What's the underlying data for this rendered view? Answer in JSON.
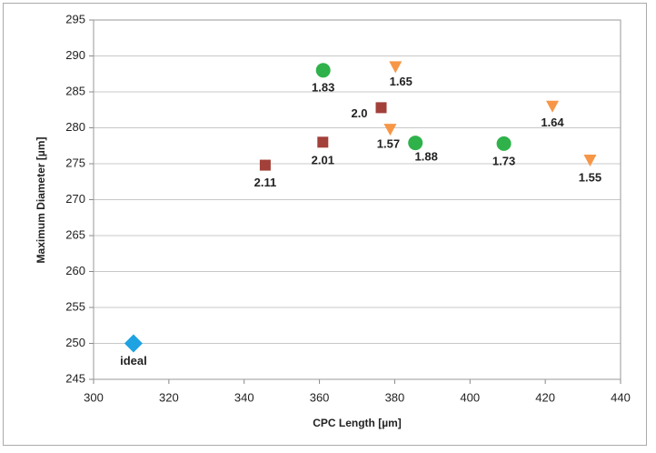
{
  "chart_data": {
    "type": "scatter",
    "x_label": "CPC Length [µm]",
    "y_label": "Maximum Diameter [µm]",
    "xlim": [
      300,
      440
    ],
    "xticks": [
      300,
      320,
      340,
      360,
      380,
      400,
      420,
      440
    ],
    "ylim": [
      245,
      295
    ],
    "yticks": [
      245,
      250,
      255,
      260,
      265,
      270,
      275,
      280,
      285,
      290,
      295
    ],
    "grid": true,
    "series": [
      {
        "marker": "circle",
        "color": "#2fb24a",
        "x": [
          361,
          385.5,
          409
        ],
        "values": [
          288,
          277.9,
          277.8
        ],
        "point_labels": [
          "1.83",
          "1.88",
          "1.73"
        ]
      },
      {
        "marker": "square",
        "color": "#a3403a",
        "x": [
          345.6,
          360.9,
          376.4
        ],
        "values": [
          274.8,
          278,
          282.8
        ],
        "point_labels": [
          "2.11",
          "2.01",
          "2.0"
        ]
      },
      {
        "marker": "triangle-down",
        "color": "#f79646",
        "x": [
          380.2,
          378.8,
          421.9,
          431.9
        ],
        "values": [
          288.5,
          279.8,
          283,
          275.5
        ],
        "point_labels": [
          "1.65",
          "1.57",
          "1.64",
          "1.55"
        ]
      },
      {
        "marker": "diamond",
        "color": "#1ea2e2",
        "x": [
          310.6
        ],
        "values": [
          250
        ],
        "point_labels": [
          "ideal"
        ]
      }
    ]
  }
}
